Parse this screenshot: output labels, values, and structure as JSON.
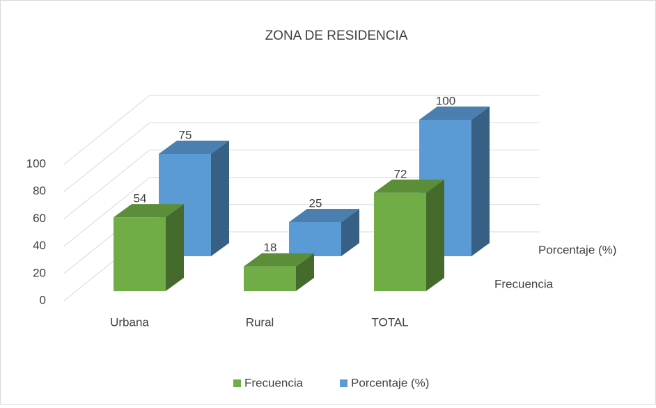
{
  "chart_data": {
    "type": "bar3d",
    "title": "ZONA DE RESIDENCIA",
    "categories": [
      "Urbana",
      "Rural",
      "TOTAL"
    ],
    "series": [
      {
        "name": "Frecuencia",
        "color": "#70ad47",
        "values": [
          54,
          18,
          72
        ]
      },
      {
        "name": "Porcentaje (%)",
        "color": "#5b9bd5",
        "values": [
          75,
          25,
          100
        ]
      }
    ],
    "ylim": [
      0,
      100
    ],
    "yticks": [
      0,
      20,
      40,
      60,
      80,
      100
    ],
    "grid": true,
    "legend": "bottom"
  }
}
